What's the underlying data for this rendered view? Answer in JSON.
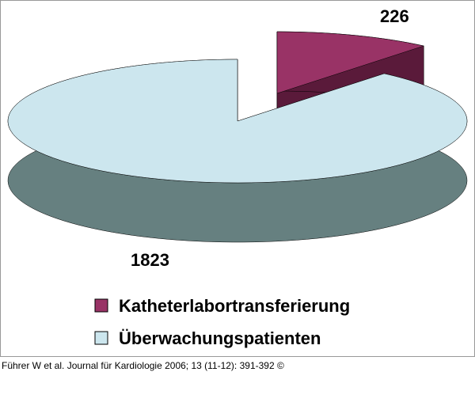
{
  "chart_data": {
    "type": "pie",
    "categories": [
      "Katheterlabortransferierung",
      "Überwachungspatienten"
    ],
    "values": [
      226,
      1823
    ],
    "colors": [
      "#993366",
      "#cce6ee"
    ],
    "side_colors": [
      "#5a1a3a",
      "#668080"
    ]
  },
  "caption": "Führer W et al. Journal für Kardiologie 2006; 13 (11-12): 391-392 ©"
}
